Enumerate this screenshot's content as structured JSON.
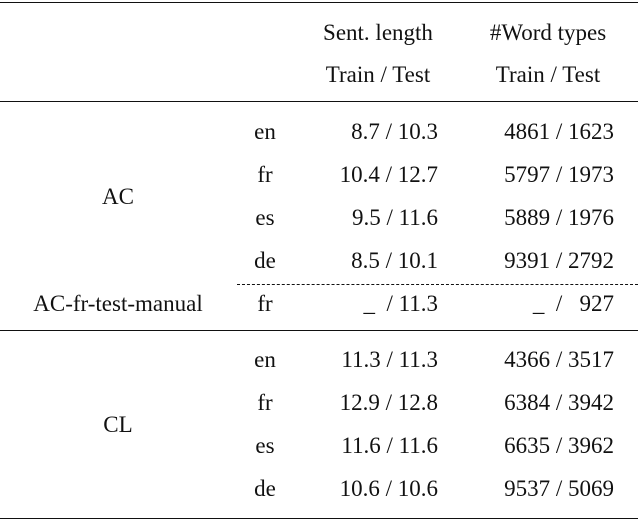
{
  "header": {
    "row1": [
      "Sent. length",
      "#Word types"
    ],
    "row2": [
      "Train / Test",
      "Train / Test"
    ]
  },
  "groups": [
    {
      "label": "AC",
      "rows": [
        {
          "lang": "en",
          "sent": "8.7 / 10.3",
          "words": "4861 / 1623"
        },
        {
          "lang": "fr",
          "sent": "10.4 / 12.7",
          "words": "5797 / 1973"
        },
        {
          "lang": "es",
          "sent": "9.5 / 11.6",
          "words": "5889 / 1976"
        },
        {
          "lang": "de",
          "sent": "8.5 / 10.1",
          "words": "9391 / 2792"
        }
      ]
    },
    {
      "label": "AC-fr-test-manual",
      "rows": [
        {
          "lang": "fr",
          "sent": "_  / 11.3",
          "words": "_  /   927"
        }
      ]
    },
    {
      "label": "CL",
      "rows": [
        {
          "lang": "en",
          "sent": "11.3 / 11.3",
          "words": "4366 / 3517"
        },
        {
          "lang": "fr",
          "sent": "12.9 / 12.8",
          "words": "6384 / 3942"
        },
        {
          "lang": "es",
          "sent": "11.6 / 11.6",
          "words": "6635 / 3962"
        },
        {
          "lang": "de",
          "sent": "10.6 / 10.6",
          "words": "9537 / 5069"
        }
      ]
    }
  ]
}
